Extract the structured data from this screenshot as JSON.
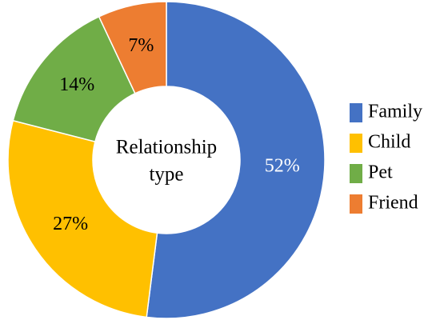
{
  "chart_data": {
    "type": "donut",
    "center_label": [
      "Relationship",
      "type"
    ],
    "categories": [
      "Family",
      "Child",
      "Pet",
      "Friend"
    ],
    "values": [
      52,
      27,
      14,
      7
    ],
    "value_labels": [
      "52%",
      "27%",
      "14%",
      "7%"
    ],
    "colors": [
      "#4472c4",
      "#ffc000",
      "#70ad47",
      "#ed7d31"
    ],
    "legend": "right"
  }
}
